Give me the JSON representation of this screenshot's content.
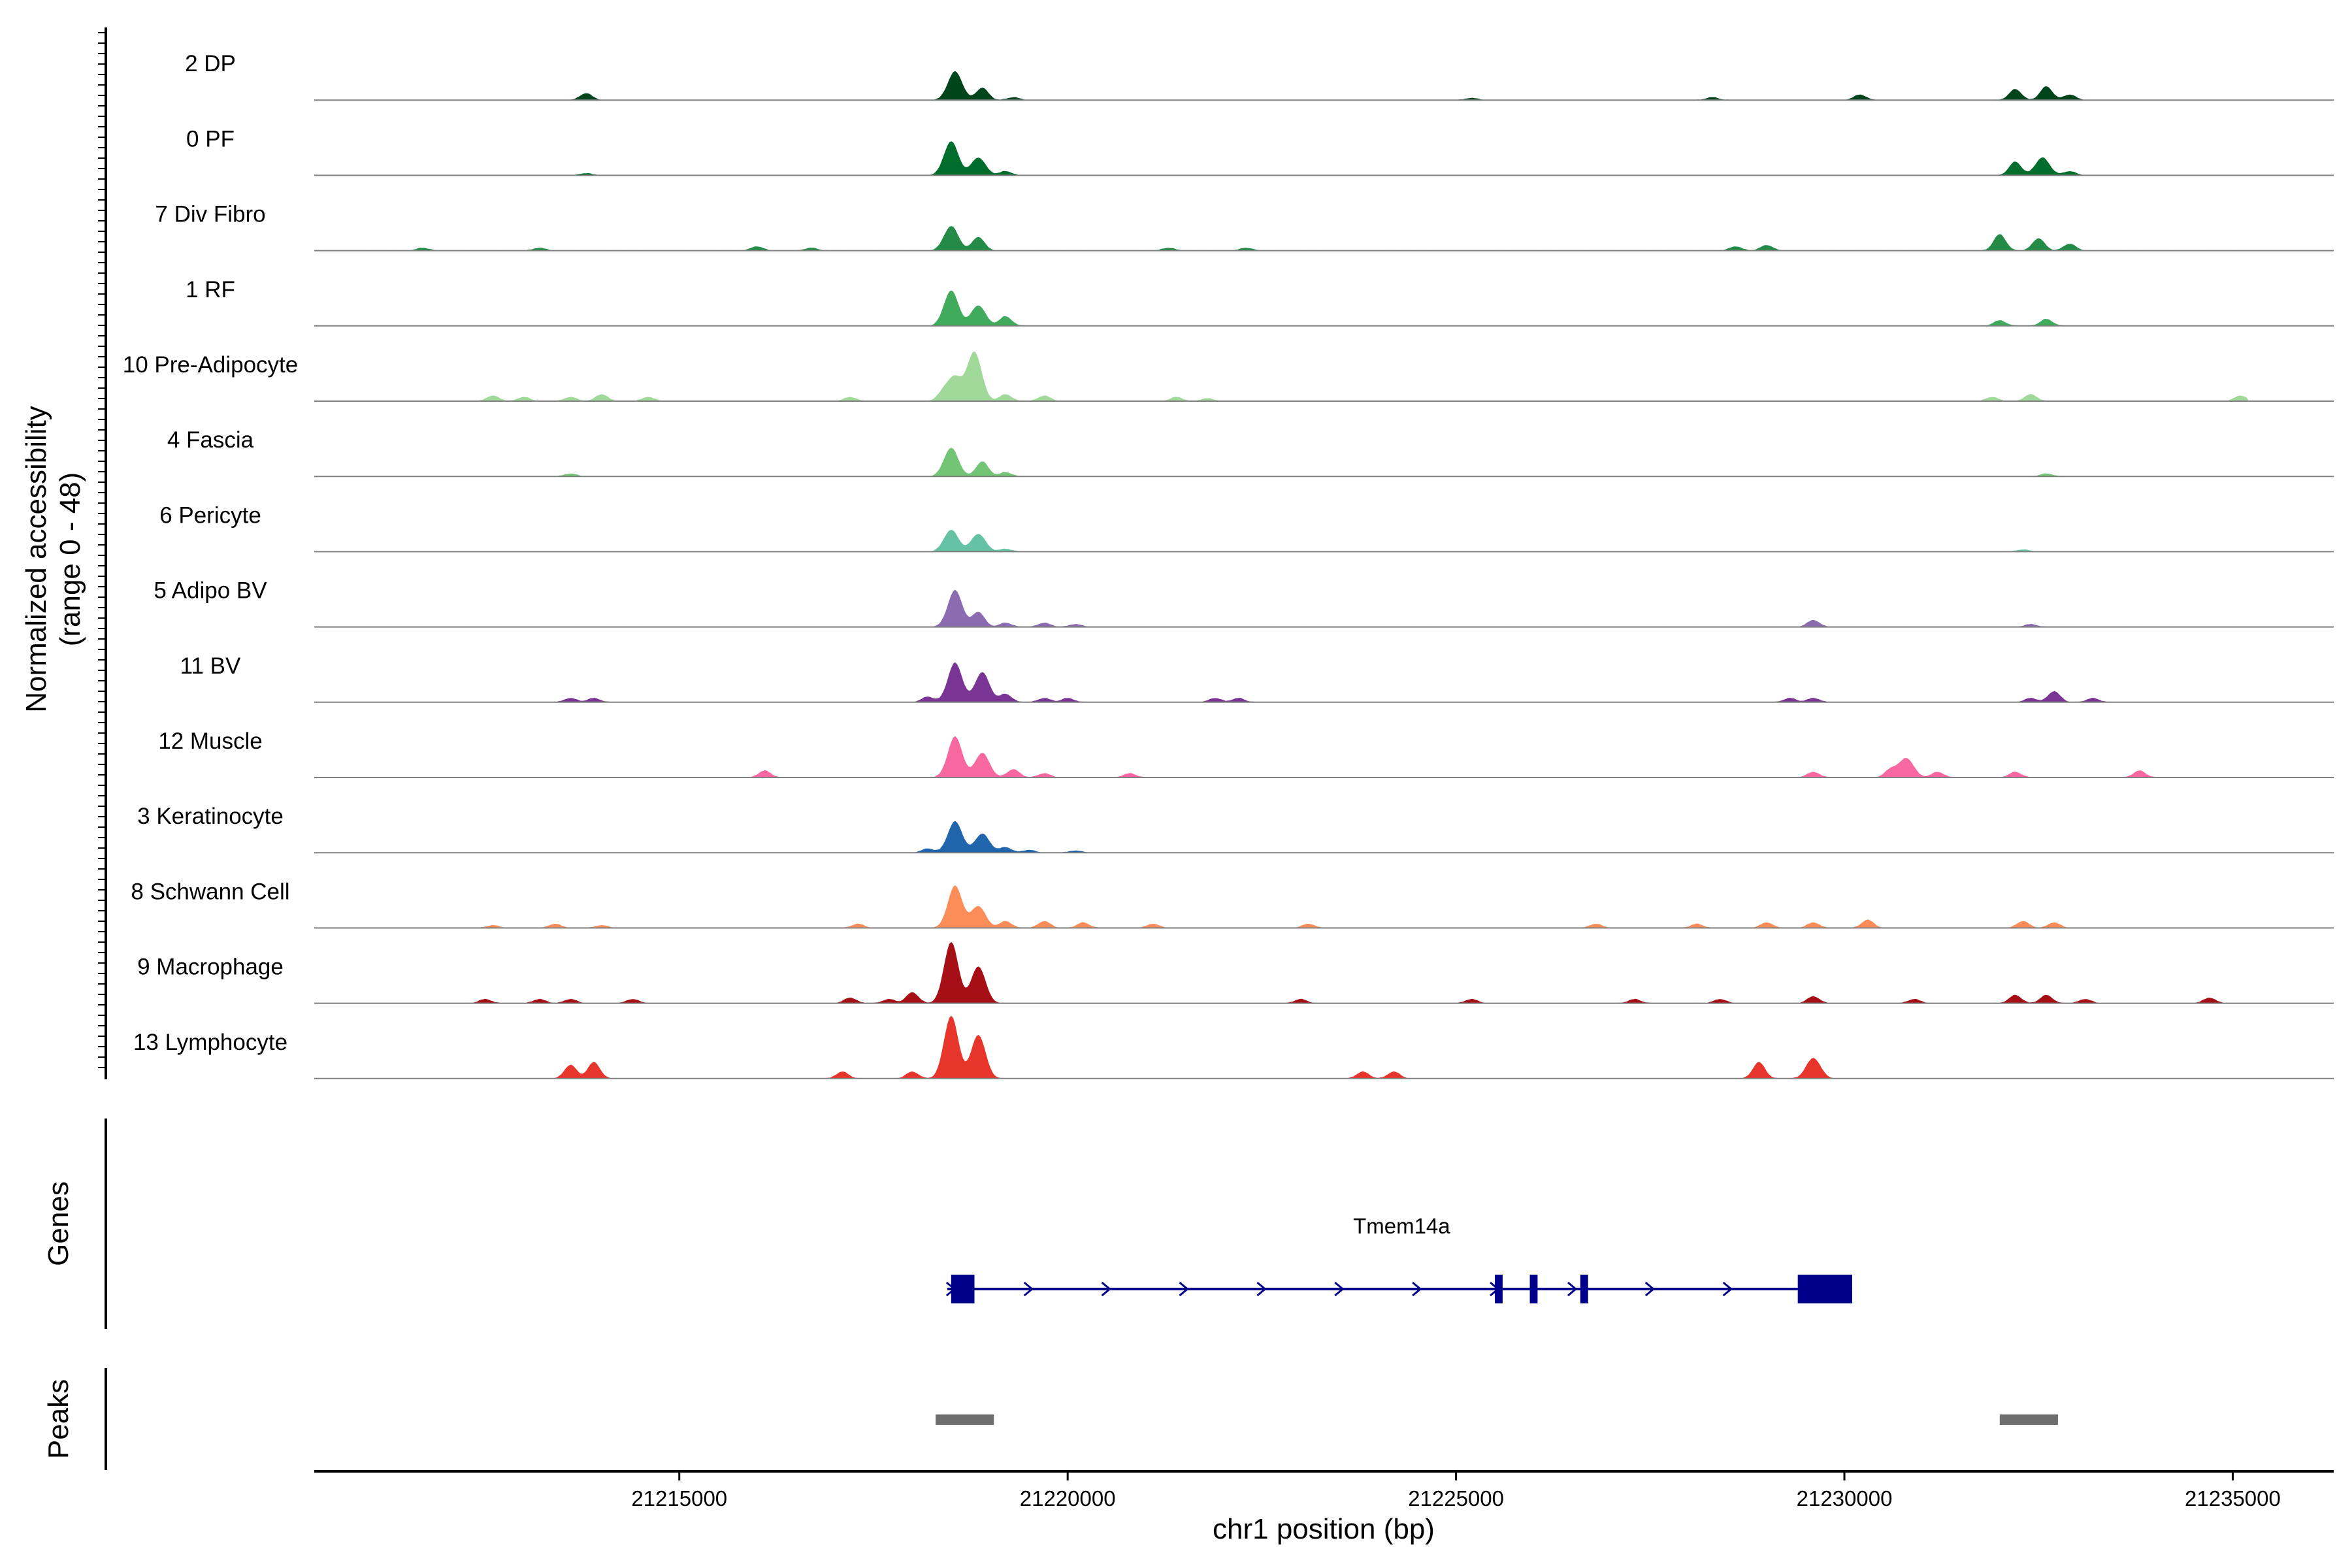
{
  "chart_data": {
    "type": "area",
    "title": "",
    "ylabel": "Normalized accessibility",
    "ylabel_range": "(range 0 - 48)",
    "ylim": [
      0,
      48
    ],
    "xlabel": "chr1 position (bp)",
    "xlim": [
      21210300,
      21236300
    ],
    "xticks": [
      21215000,
      21220000,
      21225000,
      21230000,
      21235000
    ],
    "xtick_labels": [
      "21215000",
      "21220000",
      "21225000",
      "21230000",
      "21235000"
    ],
    "genes_label": "Genes",
    "peaks_label": "Peaks",
    "tracks": [
      {
        "name": "2 DP",
        "color": "#00441b",
        "peaks": [
          [
            21213800,
            5
          ],
          [
            21218550,
            21
          ],
          [
            21218900,
            9
          ],
          [
            21219300,
            2
          ],
          [
            21228300,
            2
          ],
          [
            21230200,
            4
          ],
          [
            21232200,
            8
          ],
          [
            21232600,
            10
          ],
          [
            21232900,
            4
          ],
          [
            21225200,
            1.5
          ]
        ]
      },
      {
        "name": "0 PF",
        "color": "#006d2c",
        "peaks": [
          [
            21213800,
            1.5
          ],
          [
            21218500,
            25
          ],
          [
            21218850,
            13
          ],
          [
            21219200,
            3
          ],
          [
            21232200,
            10
          ],
          [
            21232550,
            13
          ],
          [
            21232900,
            3
          ]
        ]
      },
      {
        "name": "7 Div Fibro",
        "color": "#238b45",
        "peaks": [
          [
            21211700,
            2
          ],
          [
            21213200,
            2
          ],
          [
            21216000,
            3
          ],
          [
            21216700,
            2
          ],
          [
            21218500,
            18
          ],
          [
            21218850,
            10
          ],
          [
            21221300,
            2
          ],
          [
            21222300,
            2
          ],
          [
            21228600,
            3
          ],
          [
            21229000,
            4
          ],
          [
            21232000,
            12
          ],
          [
            21232500,
            9
          ],
          [
            21232900,
            5
          ]
        ]
      },
      {
        "name": "1 RF",
        "color": "#41ab5d",
        "peaks": [
          [
            21218500,
            26
          ],
          [
            21218850,
            15
          ],
          [
            21219200,
            7
          ],
          [
            21232000,
            4
          ],
          [
            21232600,
            5
          ]
        ]
      },
      {
        "name": "10 Pre-Adipocyte",
        "color": "#a1d99b",
        "peaks": [
          [
            21212600,
            4
          ],
          [
            21213000,
            3
          ],
          [
            21213600,
            3
          ],
          [
            21214000,
            5
          ],
          [
            21214600,
            3
          ],
          [
            21217200,
            3
          ],
          [
            21218400,
            6
          ],
          [
            21218550,
            17
          ],
          [
            21218800,
            36
          ],
          [
            21219200,
            5
          ],
          [
            21219700,
            4
          ],
          [
            21221400,
            3
          ],
          [
            21221800,
            2
          ],
          [
            21231900,
            3
          ],
          [
            21232400,
            5
          ],
          [
            21235100,
            4
          ]
        ]
      },
      {
        "name": "4 Fascia",
        "color": "#74c476",
        "peaks": [
          [
            21213600,
            2
          ],
          [
            21218500,
            21
          ],
          [
            21218900,
            11
          ],
          [
            21219200,
            3
          ],
          [
            21232600,
            2
          ]
        ]
      },
      {
        "name": "6 Pericyte",
        "color": "#66c2a4",
        "peaks": [
          [
            21218500,
            16
          ],
          [
            21218850,
            13
          ],
          [
            21219200,
            2
          ],
          [
            21232300,
            1.5
          ]
        ]
      },
      {
        "name": "5 Adipo BV",
        "color": "#8c6bb1",
        "peaks": [
          [
            21218550,
            27
          ],
          [
            21218850,
            11
          ],
          [
            21219200,
            3
          ],
          [
            21219700,
            3
          ],
          [
            21220100,
            2
          ],
          [
            21229600,
            5
          ],
          [
            21232400,
            2
          ]
        ]
      },
      {
        "name": "11 BV",
        "color": "#7a3594",
        "peaks": [
          [
            21213600,
            3
          ],
          [
            21213900,
            3
          ],
          [
            21218200,
            4
          ],
          [
            21218550,
            29
          ],
          [
            21218900,
            22
          ],
          [
            21219200,
            6
          ],
          [
            21219700,
            3
          ],
          [
            21220000,
            3
          ],
          [
            21221900,
            3
          ],
          [
            21222200,
            3
          ],
          [
            21229300,
            3
          ],
          [
            21229600,
            3
          ],
          [
            21232400,
            3
          ],
          [
            21232700,
            8
          ],
          [
            21233200,
            3
          ]
        ]
      },
      {
        "name": "12 Muscle",
        "color": "#f768a1",
        "peaks": [
          [
            21216100,
            5
          ],
          [
            21218550,
            30
          ],
          [
            21218900,
            18
          ],
          [
            21219300,
            6
          ],
          [
            21219700,
            3
          ],
          [
            21220800,
            3
          ],
          [
            21229600,
            4
          ],
          [
            21230600,
            6
          ],
          [
            21230800,
            14
          ],
          [
            21231200,
            4
          ],
          [
            21232200,
            4
          ],
          [
            21233800,
            5
          ]
        ]
      },
      {
        "name": "3 Keratinocyte",
        "color": "#2166ac",
        "peaks": [
          [
            21218200,
            3
          ],
          [
            21218550,
            23
          ],
          [
            21218900,
            14
          ],
          [
            21219200,
            4
          ],
          [
            21219500,
            2
          ],
          [
            21220100,
            1.5
          ]
        ]
      },
      {
        "name": "8 Schwann Cell",
        "color": "#fc8d59",
        "peaks": [
          [
            21212600,
            2
          ],
          [
            21213400,
            3
          ],
          [
            21214000,
            2
          ],
          [
            21217300,
            3
          ],
          [
            21218550,
            31
          ],
          [
            21218850,
            16
          ],
          [
            21219200,
            5
          ],
          [
            21219700,
            5
          ],
          [
            21220200,
            4
          ],
          [
            21221100,
            3
          ],
          [
            21223100,
            3
          ],
          [
            21226800,
            3
          ],
          [
            21228100,
            3
          ],
          [
            21229000,
            4
          ],
          [
            21229600,
            4
          ],
          [
            21230300,
            6
          ],
          [
            21232300,
            5
          ],
          [
            21232700,
            4
          ]
        ]
      },
      {
        "name": "9 Macrophage",
        "color": "#a50f15",
        "peaks": [
          [
            21212500,
            3
          ],
          [
            21213200,
            3
          ],
          [
            21213600,
            3
          ],
          [
            21214400,
            3
          ],
          [
            21217200,
            4
          ],
          [
            21217700,
            3
          ],
          [
            21218000,
            8
          ],
          [
            21218500,
            45
          ],
          [
            21218850,
            27
          ],
          [
            21223000,
            3
          ],
          [
            21225200,
            3
          ],
          [
            21227300,
            3
          ],
          [
            21228400,
            3
          ],
          [
            21229600,
            5
          ],
          [
            21230900,
            3
          ],
          [
            21232200,
            6
          ],
          [
            21232600,
            6
          ],
          [
            21233100,
            3
          ],
          [
            21234700,
            4
          ]
        ]
      },
      {
        "name": "13 Lymphocyte",
        "color": "#e8352c",
        "peaks": [
          [
            21213600,
            10
          ],
          [
            21213900,
            12
          ],
          [
            21217100,
            5
          ],
          [
            21218000,
            5
          ],
          [
            21218500,
            46
          ],
          [
            21218850,
            32
          ],
          [
            21223800,
            5
          ],
          [
            21224200,
            5
          ],
          [
            21228900,
            12
          ],
          [
            21229600,
            15
          ]
        ]
      }
    ],
    "gene": {
      "name": "Tmem14a",
      "strand": "+",
      "start": 21218500,
      "end": 21230100,
      "exons": [
        [
          21218500,
          21218800
        ],
        [
          21225500,
          21225600
        ],
        [
          21225950,
          21226050
        ],
        [
          21226600,
          21226700
        ],
        [
          21229400,
          21230100
        ]
      ]
    },
    "peak_regions": [
      [
        21218300,
        21219050
      ],
      [
        21232000,
        21232750
      ]
    ]
  }
}
